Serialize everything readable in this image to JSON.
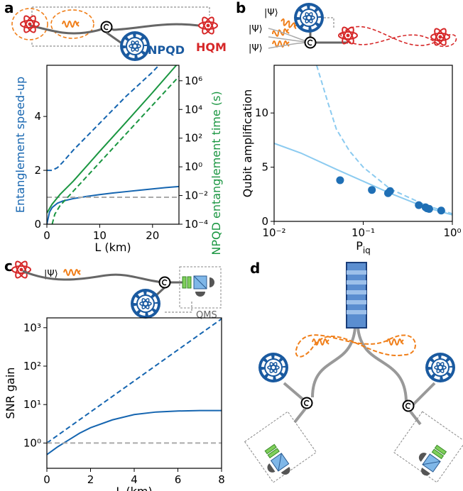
{
  "panel_labels": [
    "a",
    "b",
    "c",
    "d"
  ],
  "sketch": {
    "npqd": "NPQD",
    "hqm": "HQM",
    "psi": "|Ψ⟩",
    "qms": "QMS"
  },
  "chart_data": [
    {
      "type": "line",
      "xlabel": "L (km)",
      "ylabel": "Entanglement speed-up",
      "y2label": "NPQD entanglement time (s)",
      "ylabel_color": "#1565b0",
      "y2label_color": "#1a9641",
      "xlim": [
        0,
        25
      ],
      "xticks": [
        0,
        10,
        20
      ],
      "ylim": [
        0,
        5.9
      ],
      "yticks": [
        0,
        2,
        4
      ],
      "y2log": true,
      "y2lim": [
        0.0001,
        12000000
      ],
      "y2ticks": [
        {
          "value": 0.0001,
          "label": "10⁻⁴"
        },
        {
          "value": 0.01,
          "label": "10⁻²"
        },
        {
          "value": 1,
          "label": "10⁰"
        },
        {
          "value": 100,
          "label": "10²"
        },
        {
          "value": 10000,
          "label": "10⁴"
        },
        {
          "value": 1000000,
          "label": "10⁶"
        }
      ],
      "series": [
        {
          "color": "#1565b0",
          "dash": false,
          "x": [
            0,
            0.5,
            1,
            2,
            3,
            5,
            7.5,
            10,
            12.5,
            15,
            17.5,
            20,
            22.5,
            25
          ],
          "values": [
            0,
            0.45,
            0.62,
            0.78,
            0.86,
            0.95,
            1.03,
            1.1,
            1.16,
            1.21,
            1.26,
            1.31,
            1.36,
            1.4
          ]
        },
        {
          "color": "#1565b0",
          "dash": true,
          "x": [
            0,
            1,
            2,
            3,
            5,
            7.5,
            10,
            12.5,
            15,
            17.5,
            20,
            21.2
          ],
          "values": [
            2.0,
            2.0,
            2.1,
            2.3,
            2.75,
            3.25,
            3.75,
            4.25,
            4.75,
            5.2,
            5.65,
            5.9
          ]
        },
        {
          "color": "#aaaaaa",
          "dash": true,
          "x": [
            0,
            25
          ],
          "values": [
            1,
            1
          ]
        },
        {
          "color": "#1a9641",
          "dash": false,
          "axis": "y2",
          "x": [
            0,
            1,
            2.5,
            5,
            10,
            15,
            20,
            24.5
          ],
          "values": [
            0.0006,
            0.0025,
            0.012,
            0.1,
            12,
            1300,
            150000,
            12000000
          ]
        },
        {
          "color": "#1a9641",
          "dash": true,
          "axis": "y2",
          "x": [
            1,
            1.5,
            2.5,
            5,
            10,
            15,
            20,
            25
          ],
          "values": [
            0.0001,
            0.0005,
            0.002,
            0.02,
            2,
            200,
            20000,
            2000000
          ]
        }
      ]
    },
    {
      "type": "line",
      "xlabel": {
        "text": "P",
        "sub": "iq"
      },
      "ylabel": "Qubit amplification",
      "xlog": true,
      "xlim": [
        0.01,
        1
      ],
      "xticks": [
        {
          "value": 0.01,
          "label": "10⁻²"
        },
        {
          "value": 0.1,
          "label": "10⁻¹"
        },
        {
          "value": 1,
          "label": "10⁰"
        }
      ],
      "ylim": [
        0,
        14.4
      ],
      "yticks": [
        0,
        5,
        10
      ],
      "series": [
        {
          "color": "#8ccbf0",
          "dash": false,
          "x": [
            0.01,
            0.02,
            0.05,
            0.1,
            0.2,
            0.5,
            1
          ],
          "values": [
            7.2,
            6.3,
            4.8,
            3.7,
            2.6,
            1.3,
            0.6
          ]
        },
        {
          "color": "#8ccbf0",
          "dash": true,
          "x": [
            0.03,
            0.04,
            0.05,
            0.07,
            0.1,
            0.2,
            0.5,
            1
          ],
          "values": [
            14.4,
            11,
            8.5,
            6.5,
            5,
            3,
            1.5,
            0.7
          ]
        },
        {
          "color": "#1f6fb5",
          "mode": "markers",
          "x": [
            0.055,
            0.125,
            0.19,
            0.2,
            0.42,
            0.5,
            0.52,
            0.55,
            0.75
          ],
          "values": [
            3.8,
            2.9,
            2.6,
            2.8,
            1.5,
            1.3,
            1.2,
            1.15,
            1.0
          ]
        }
      ]
    },
    {
      "type": "line",
      "xlabel": "L (km)",
      "ylabel": "SNR gain",
      "xlim": [
        0,
        8
      ],
      "xticks": [
        0,
        2,
        4,
        6,
        8
      ],
      "ylog": true,
      "ylim": [
        0.22,
        1800
      ],
      "yticks": [
        {
          "value": 1,
          "label": "10⁰"
        },
        {
          "value": 10,
          "label": "10¹"
        },
        {
          "value": 100,
          "label": "10²"
        },
        {
          "value": 1000,
          "label": "10³"
        }
      ],
      "series": [
        {
          "color": "#1565b0",
          "dash": true,
          "x": [
            0,
            8
          ],
          "values": [
            1,
            1700
          ]
        },
        {
          "color": "#1565b0",
          "dash": false,
          "x": [
            0,
            0.5,
            1,
            1.5,
            2,
            3,
            4,
            5,
            6,
            7,
            8
          ],
          "values": [
            0.5,
            0.8,
            1.2,
            1.8,
            2.5,
            4,
            5.5,
            6.4,
            6.8,
            7,
            7
          ]
        },
        {
          "color": "#aaaaaa",
          "dash": true,
          "x": [
            0,
            8
          ],
          "values": [
            1,
            1
          ]
        }
      ]
    }
  ]
}
